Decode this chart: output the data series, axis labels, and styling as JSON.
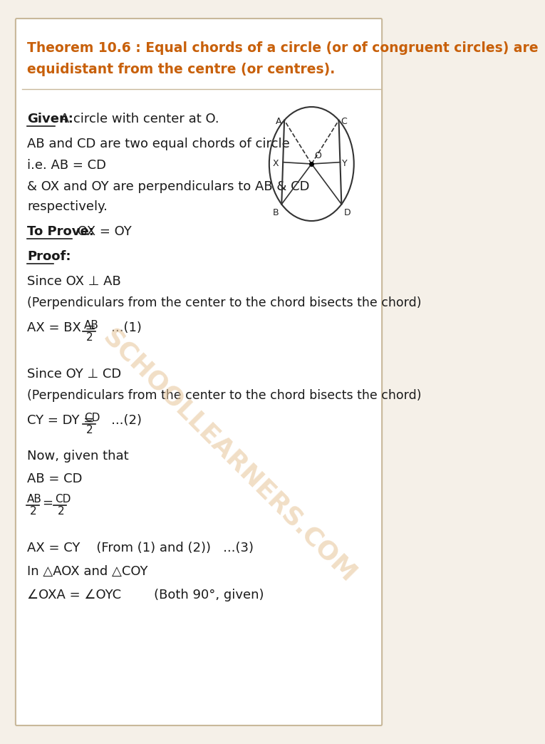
{
  "bg_outer": "#f5f0e8",
  "bg_inner": "#ffffff",
  "border_color": "#c8b89a",
  "theorem_color": "#c8600a",
  "text_color": "#1a1a1a",
  "watermark_color": "#e8c9a0",
  "theorem_line1": "Theorem 10.6 : Equal chords of a circle (or of congruent circles) are",
  "theorem_line2": "equidistant from the centre (or centres).",
  "given_label": "Given:",
  "given_text": " A circle with center at O.",
  "line2": "AB and CD are two equal chords of circle",
  "line3": "i.e. AB = CD",
  "line4": "& OX and OY are perpendiculars to AB & CD",
  "line4b": "respectively.",
  "toprove_label": "To Prove:",
  "toprove_text": " OX = OY",
  "proof_label": "Proof:",
  "since1": "Since OX ⊥ AB",
  "perp1": "(Perpendiculars from the center to the chord bisects the chord)",
  "eq1": "AX = BX = ",
  "eq1_frac_num": "AB",
  "eq1_frac_den": "2",
  "eq1_ref": "   ...(1)",
  "since2": "Since OY ⊥ CD",
  "perp2": "(Perpendiculars from the center to the chord bisects the chord)",
  "eq2": "CY = DY = ",
  "eq2_frac_num": "CD",
  "eq2_frac_den": "2",
  "eq2_ref": "   ...(2)",
  "now_given": "Now, given that",
  "ab_cd": "AB = CD",
  "frac_num1": "AB",
  "frac_den1": "2",
  "frac_num2": "CD",
  "frac_den2": "2",
  "ax_cy": "AX = CY    (From (1) and (2))   ...(3)",
  "triangle_line": "In △AOX and △COY",
  "angle_line": "∠OXA = ∠OYC        (Both 90°, given)",
  "watermark": "SCHOOLLEARNERS.COM"
}
